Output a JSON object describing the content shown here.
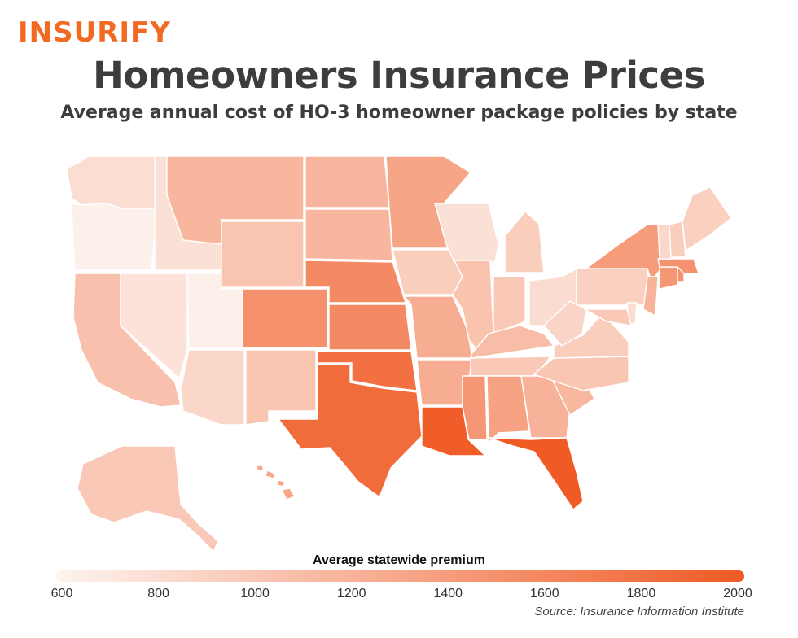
{
  "header": {
    "logo_text": "INSURIFY",
    "title": "Homeowners Insurance Prices",
    "subtitle": "Average annual cost of HO-3 homeowner package policies by state"
  },
  "legend": {
    "title": "Average statewide premium",
    "min": 600,
    "max": 2000,
    "ticks": [
      "600",
      "800",
      "1000",
      "1200",
      "1400",
      "1600",
      "1800",
      "2000"
    ],
    "color_low": "#fdf4f0",
    "color_high": "#f05a24"
  },
  "source": "Source: Insurance Information Institute",
  "map_data": {
    "states": [
      {
        "id": "WA",
        "value": 810
      },
      {
        "id": "OR",
        "value": 650
      },
      {
        "id": "CA",
        "value": 1060
      },
      {
        "id": "ID",
        "value": 780
      },
      {
        "id": "NV",
        "value": 760
      },
      {
        "id": "UT",
        "value": 640
      },
      {
        "id": "AZ",
        "value": 860
      },
      {
        "id": "MT",
        "value": 1160
      },
      {
        "id": "WY",
        "value": 1040
      },
      {
        "id": "CO",
        "value": 1500
      },
      {
        "id": "NM",
        "value": 1030
      },
      {
        "id": "ND",
        "value": 1170
      },
      {
        "id": "SD",
        "value": 1160
      },
      {
        "id": "NE",
        "value": 1560
      },
      {
        "id": "KS",
        "value": 1560
      },
      {
        "id": "OK",
        "value": 1800
      },
      {
        "id": "TX",
        "value": 1840
      },
      {
        "id": "MN",
        "value": 1320
      },
      {
        "id": "IA",
        "value": 950
      },
      {
        "id": "MO",
        "value": 1250
      },
      {
        "id": "AR",
        "value": 1250
      },
      {
        "id": "LA",
        "value": 1970
      },
      {
        "id": "WI",
        "value": 780
      },
      {
        "id": "IL",
        "value": 1050
      },
      {
        "id": "MI",
        "value": 950
      },
      {
        "id": "IN",
        "value": 1000
      },
      {
        "id": "OH",
        "value": 820
      },
      {
        "id": "KY",
        "value": 1100
      },
      {
        "id": "TN",
        "value": 1000
      },
      {
        "id": "MS",
        "value": 1450
      },
      {
        "id": "AL",
        "value": 1350
      },
      {
        "id": "GA",
        "value": 1200
      },
      {
        "id": "FL",
        "value": 1990
      },
      {
        "id": "SC",
        "value": 1150
      },
      {
        "id": "NC",
        "value": 1020
      },
      {
        "id": "VA",
        "value": 950
      },
      {
        "id": "WV",
        "value": 880
      },
      {
        "id": "PA",
        "value": 920
      },
      {
        "id": "NY",
        "value": 1400
      },
      {
        "id": "NJ",
        "value": 1190
      },
      {
        "id": "DE",
        "value": 820
      },
      {
        "id": "MD",
        "value": 1000
      },
      {
        "id": "CT",
        "value": 1450
      },
      {
        "id": "RI",
        "value": 1500
      },
      {
        "id": "MA",
        "value": 1480
      },
      {
        "id": "VT",
        "value": 860
      },
      {
        "id": "NH",
        "value": 950
      },
      {
        "id": "ME",
        "value": 920
      },
      {
        "id": "AK",
        "value": 1000
      },
      {
        "id": "HI",
        "value": 1290
      }
    ]
  }
}
